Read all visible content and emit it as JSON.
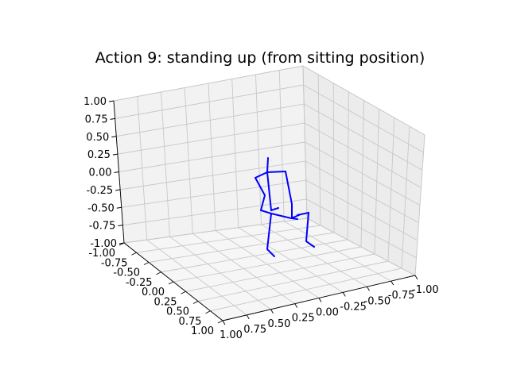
{
  "chart_data": {
    "type": "3d-line",
    "title": "Action 9: standing up (from sitting position)",
    "xlim": [
      -1.0,
      1.0
    ],
    "ylim": [
      -1.0,
      1.0
    ],
    "zlim": [
      -1.0,
      1.0
    ],
    "z_ticks": [
      "-1.00",
      "-0.75",
      "-0.50",
      "-0.25",
      "0.00",
      "0.25",
      "0.50",
      "0.75",
      "1.00"
    ],
    "y_ticks": [
      "-1.00",
      "-0.75",
      "-0.50",
      "-0.25",
      "0.00",
      "0.25",
      "0.50",
      "0.75",
      "1.00"
    ],
    "x_ticks": [
      "-1.00",
      "-0.75",
      "-0.50",
      "-0.25",
      "0.00",
      "0.25",
      "0.50",
      "0.75",
      "1.00"
    ],
    "grid": true,
    "line_color": "#0000ff",
    "skeleton_segments": [
      {
        "name": "spine-upper",
        "points": [
          [
            337,
            199
          ],
          [
            336,
            217
          ]
        ]
      },
      {
        "name": "shoulders",
        "points": [
          [
            321,
            224
          ],
          [
            336,
            217
          ],
          [
            359,
            216
          ]
        ]
      },
      {
        "name": "left-arm",
        "points": [
          [
            321,
            224
          ],
          [
            333,
            246
          ],
          [
            328,
            265
          ],
          [
            341,
            269
          ],
          [
            366,
            275
          ],
          [
            376,
            271
          ]
        ]
      },
      {
        "name": "right-arm",
        "points": [
          [
            359,
            216
          ],
          [
            367,
            257
          ],
          [
            367,
            275
          ],
          [
            374,
            276
          ]
        ]
      },
      {
        "name": "spine-lower",
        "points": [
          [
            336,
            217
          ],
          [
            341,
            265
          ],
          [
            350,
            262
          ]
        ]
      },
      {
        "name": "left-leg",
        "points": [
          [
            341,
            269
          ],
          [
            337,
            305
          ],
          [
            336,
            314
          ],
          [
            345,
            323
          ]
        ]
      },
      {
        "name": "right-leg",
        "points": [
          [
            374,
            271
          ],
          [
            388,
            268
          ],
          [
            385,
            304
          ],
          [
            395,
            311
          ]
        ]
      }
    ]
  }
}
